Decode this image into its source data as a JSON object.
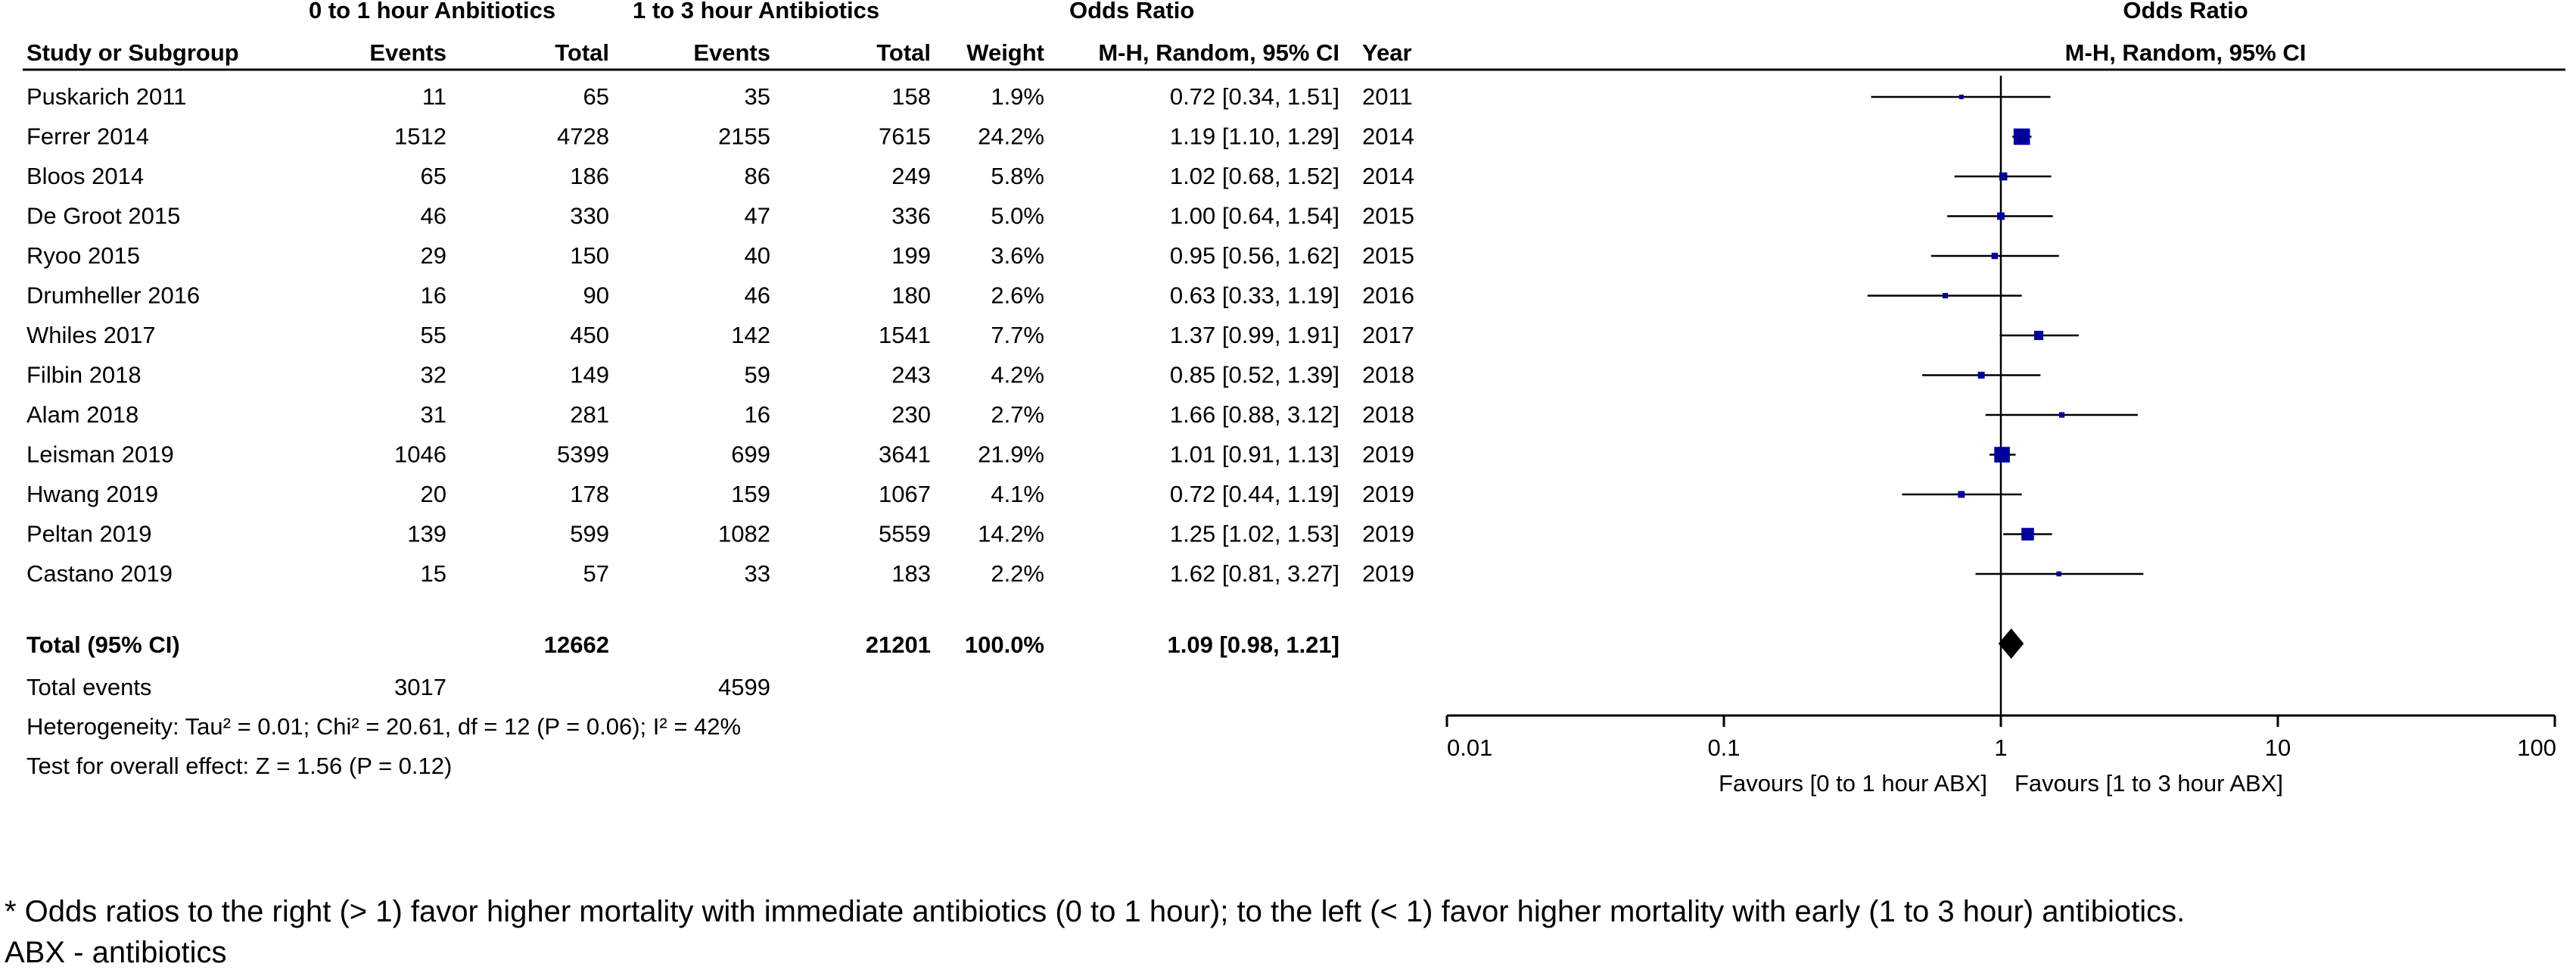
{
  "headers": {
    "group1": "0 to 1 hour Anbitiotics",
    "group2": "1 to 3 hour Antibiotics",
    "or_title": "Odds Ratio",
    "study": "Study or Subgroup",
    "events": "Events",
    "total": "Total",
    "weight": "Weight",
    "method": "M-H, Random, 95% CI",
    "year": "Year",
    "plot_title": "Odds Ratio",
    "plot_method": "M-H, Random, 95% CI"
  },
  "rows": [
    {
      "study": "Puskarich 2011",
      "e1": "11",
      "t1": "65",
      "e2": "35",
      "t2": "158",
      "weight": "1.9%",
      "or_text": "0.72 [0.34, 1.51]",
      "year": "2011"
    },
    {
      "study": "Ferrer 2014",
      "e1": "1512",
      "t1": "4728",
      "e2": "2155",
      "t2": "7615",
      "weight": "24.2%",
      "or_text": "1.19 [1.10, 1.29]",
      "year": "2014"
    },
    {
      "study": "Bloos 2014",
      "e1": "65",
      "t1": "186",
      "e2": "86",
      "t2": "249",
      "weight": "5.8%",
      "or_text": "1.02 [0.68, 1.52]",
      "year": "2014"
    },
    {
      "study": "De Groot 2015",
      "e1": "46",
      "t1": "330",
      "e2": "47",
      "t2": "336",
      "weight": "5.0%",
      "or_text": "1.00 [0.64, 1.54]",
      "year": "2015"
    },
    {
      "study": "Ryoo 2015",
      "e1": "29",
      "t1": "150",
      "e2": "40",
      "t2": "199",
      "weight": "3.6%",
      "or_text": "0.95 [0.56, 1.62]",
      "year": "2015"
    },
    {
      "study": "Drumheller 2016",
      "e1": "16",
      "t1": "90",
      "e2": "46",
      "t2": "180",
      "weight": "2.6%",
      "or_text": "0.63 [0.33, 1.19]",
      "year": "2016"
    },
    {
      "study": "Whiles 2017",
      "e1": "55",
      "t1": "450",
      "e2": "142",
      "t2": "1541",
      "weight": "7.7%",
      "or_text": "1.37 [0.99, 1.91]",
      "year": "2017"
    },
    {
      "study": "Filbin 2018",
      "e1": "32",
      "t1": "149",
      "e2": "59",
      "t2": "243",
      "weight": "4.2%",
      "or_text": "0.85 [0.52, 1.39]",
      "year": "2018"
    },
    {
      "study": "Alam 2018",
      "e1": "31",
      "t1": "281",
      "e2": "16",
      "t2": "230",
      "weight": "2.7%",
      "or_text": "1.66 [0.88, 3.12]",
      "year": "2018"
    },
    {
      "study": "Leisman 2019",
      "e1": "1046",
      "t1": "5399",
      "e2": "699",
      "t2": "3641",
      "weight": "21.9%",
      "or_text": "1.01 [0.91, 1.13]",
      "year": "2019"
    },
    {
      "study": "Hwang 2019",
      "e1": "20",
      "t1": "178",
      "e2": "159",
      "t2": "1067",
      "weight": "4.1%",
      "or_text": "0.72 [0.44, 1.19]",
      "year": "2019"
    },
    {
      "study": "Peltan 2019",
      "e1": "139",
      "t1": "599",
      "e2": "1082",
      "t2": "5559",
      "weight": "14.2%",
      "or_text": "1.25 [1.02, 1.53]",
      "year": "2019"
    },
    {
      "study": "Castano 2019",
      "e1": "15",
      "t1": "57",
      "e2": "33",
      "t2": "183",
      "weight": "2.2%",
      "or_text": "1.62 [0.81, 3.27]",
      "year": "2019"
    }
  ],
  "total_row": {
    "label": "Total (95% CI)",
    "t1": "12662",
    "t2": "21201",
    "weight": "100.0%",
    "or_text": "1.09 [0.98, 1.21]"
  },
  "events_row": {
    "label": "Total events",
    "e1": "3017",
    "e2": "4599"
  },
  "heterogeneity": "Heterogeneity: Tau² = 0.01; Chi² = 20.61, df = 12 (P = 0.06); I² = 42%",
  "overall_effect": "Test for overall effect: Z = 1.56 (P = 0.12)",
  "favours_left": "Favours [0 to 1 hour ABX]",
  "favours_right": "Favours [1 to 3 hour ABX]",
  "footnote_line1": "* Odds ratios to the right (> 1) favor higher mortality with immediate antibiotics (0 to 1 hour); to the left (< 1) favor higher mortality with early (1 to 3 hour) antibiotics.",
  "footnote_line2": "ABX - antibiotics",
  "chart_data": {
    "type": "forest",
    "x_scale": "log",
    "xlim": [
      0.01,
      100
    ],
    "x_ticks": [
      "0.01",
      "0.1",
      "1",
      "10",
      "100"
    ],
    "x_tick_values": [
      0.01,
      0.1,
      1,
      10,
      100
    ],
    "marker_color": "#00009c",
    "studies": [
      {
        "name": "Puskarich 2011",
        "or": 0.72,
        "lo": 0.34,
        "hi": 1.51,
        "weight": 1.9
      },
      {
        "name": "Ferrer 2014",
        "or": 1.19,
        "lo": 1.1,
        "hi": 1.29,
        "weight": 24.2
      },
      {
        "name": "Bloos 2014",
        "or": 1.02,
        "lo": 0.68,
        "hi": 1.52,
        "weight": 5.8
      },
      {
        "name": "De Groot 2015",
        "or": 1.0,
        "lo": 0.64,
        "hi": 1.54,
        "weight": 5.0
      },
      {
        "name": "Ryoo 2015",
        "or": 0.95,
        "lo": 0.56,
        "hi": 1.62,
        "weight": 3.6
      },
      {
        "name": "Drumheller 2016",
        "or": 0.63,
        "lo": 0.33,
        "hi": 1.19,
        "weight": 2.6
      },
      {
        "name": "Whiles 2017",
        "or": 1.37,
        "lo": 0.99,
        "hi": 1.91,
        "weight": 7.7
      },
      {
        "name": "Filbin 2018",
        "or": 0.85,
        "lo": 0.52,
        "hi": 1.39,
        "weight": 4.2
      },
      {
        "name": "Alam 2018",
        "or": 1.66,
        "lo": 0.88,
        "hi": 3.12,
        "weight": 2.7
      },
      {
        "name": "Leisman 2019",
        "or": 1.01,
        "lo": 0.91,
        "hi": 1.13,
        "weight": 21.9
      },
      {
        "name": "Hwang 2019",
        "or": 0.72,
        "lo": 0.44,
        "hi": 1.19,
        "weight": 4.1
      },
      {
        "name": "Peltan 2019",
        "or": 1.25,
        "lo": 1.02,
        "hi": 1.53,
        "weight": 14.2
      },
      {
        "name": "Castano 2019",
        "or": 1.62,
        "lo": 0.81,
        "hi": 3.27,
        "weight": 2.2
      }
    ],
    "pooled": {
      "or": 1.09,
      "lo": 0.98,
      "hi": 1.21
    }
  }
}
